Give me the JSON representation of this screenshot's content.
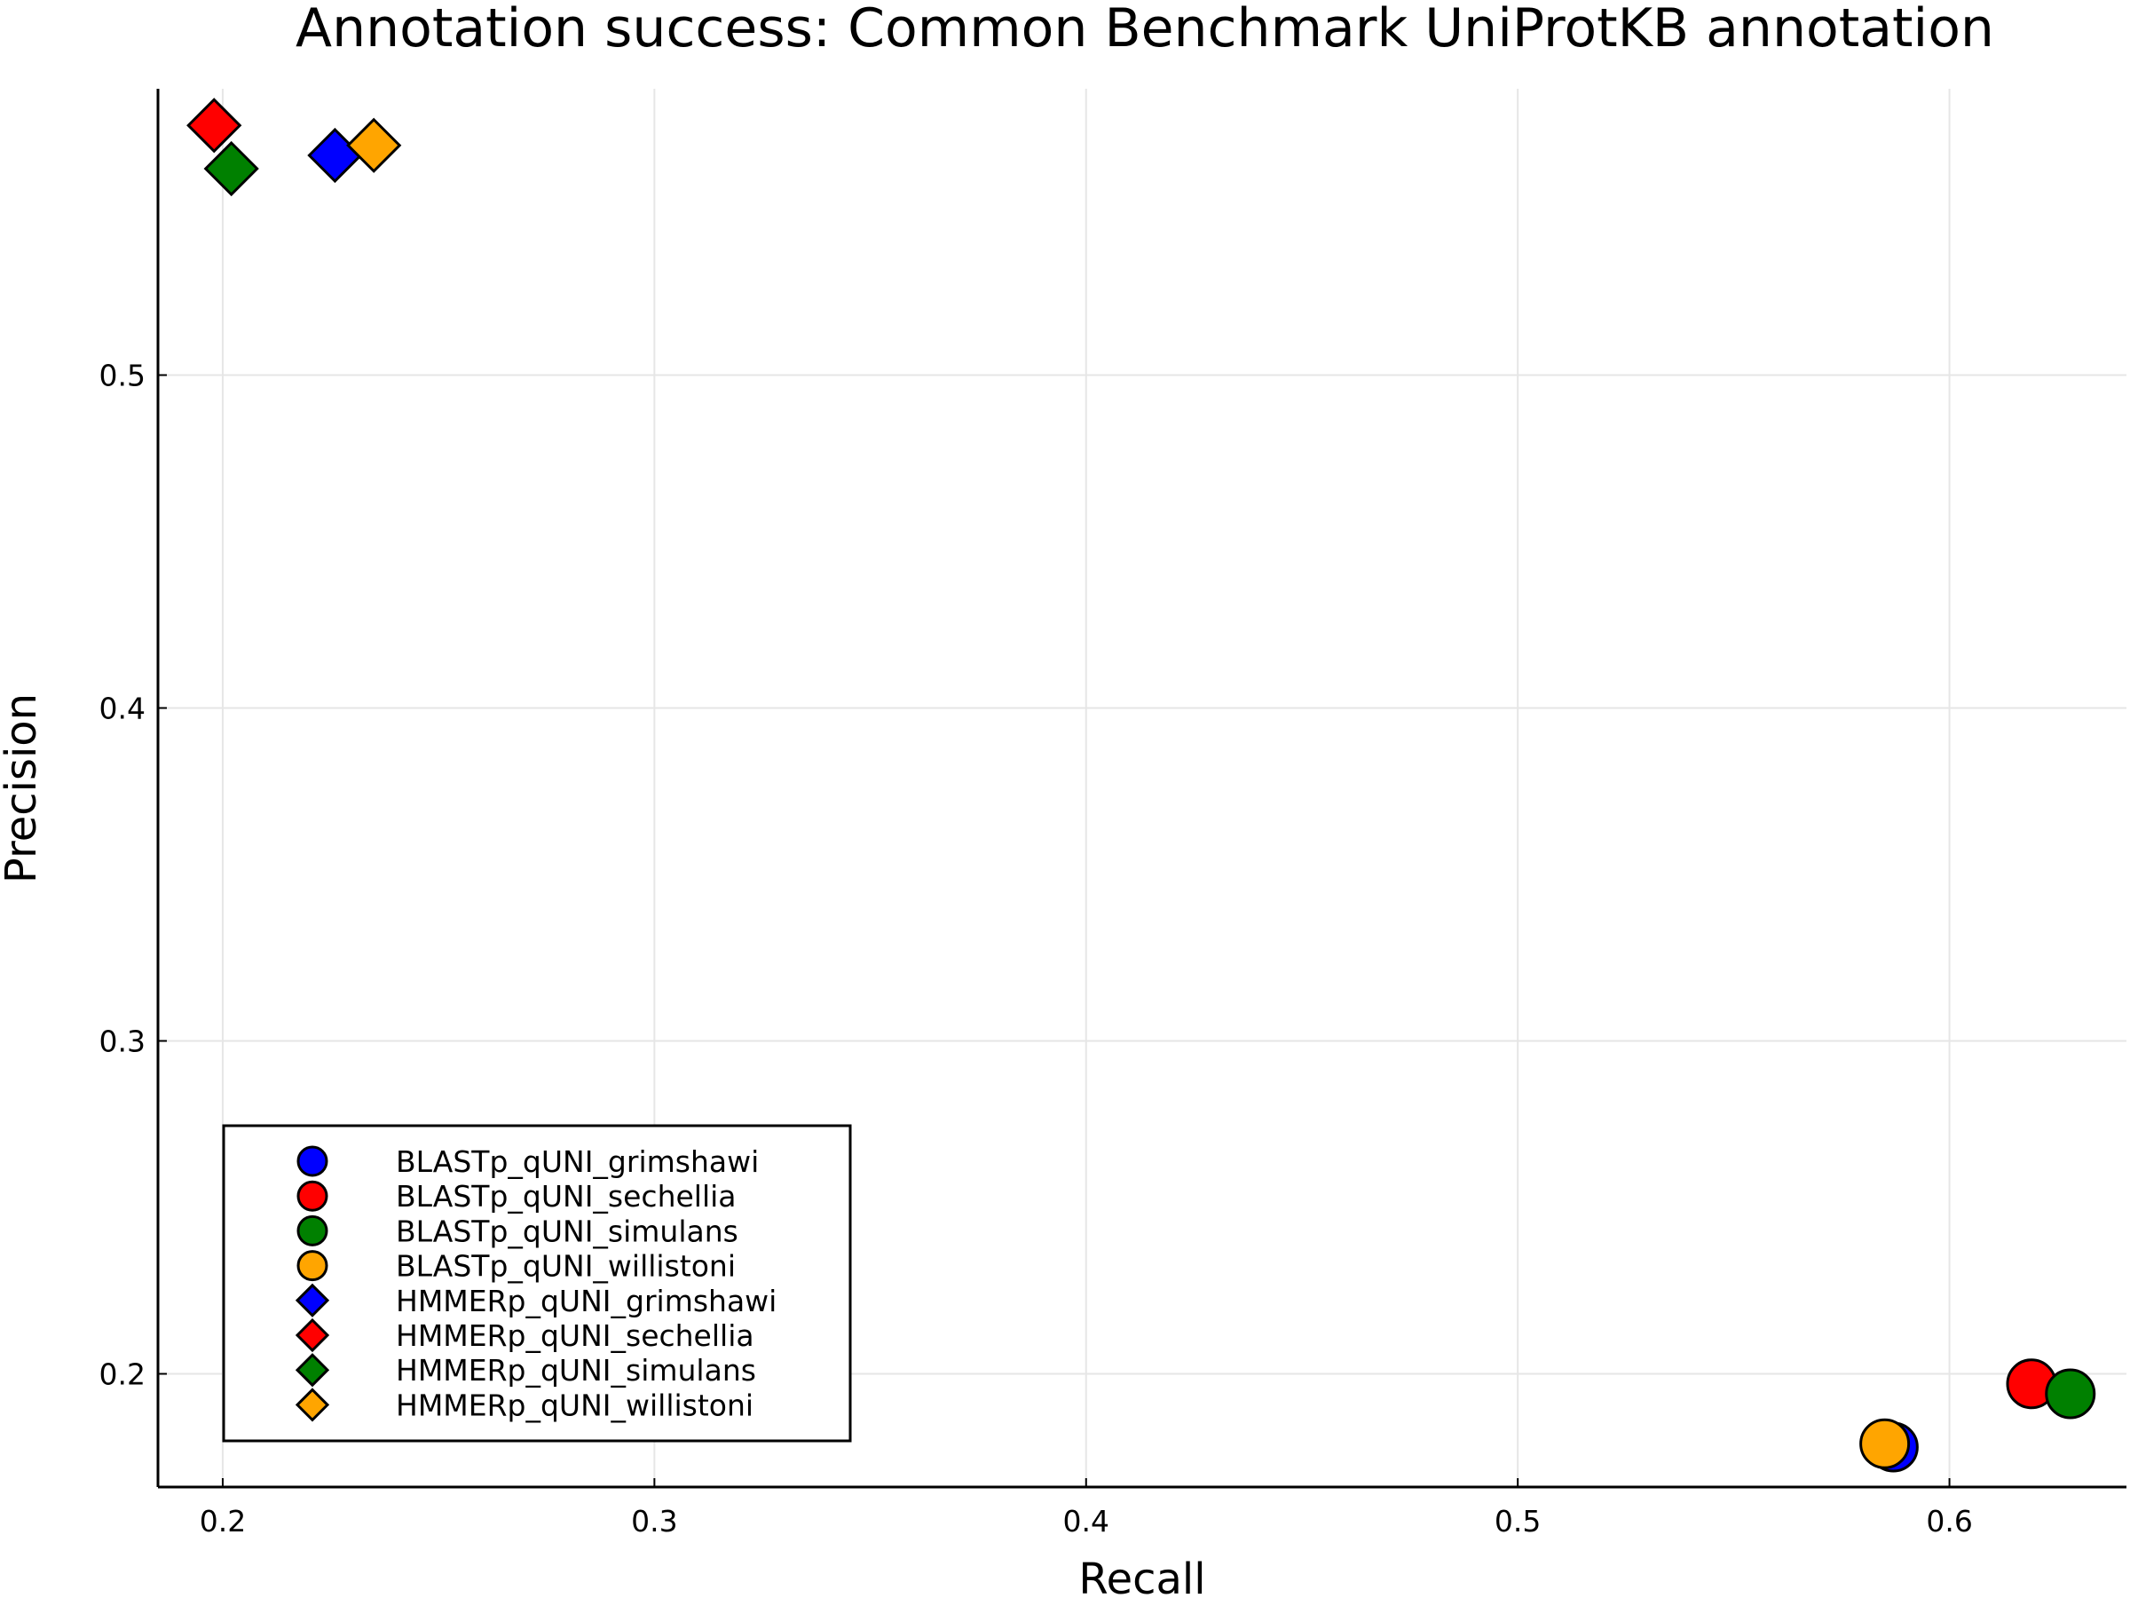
{
  "chart_data": {
    "type": "scatter",
    "title": "Annotation success: Common Benchmark UniProtKB annotation",
    "xlabel": "Recall",
    "ylabel": "Precision",
    "xlim": [
      0.185,
      0.641
    ],
    "ylim": [
      0.166,
      0.586
    ],
    "xticks": [
      0.2,
      0.3,
      0.4,
      0.5,
      0.6
    ],
    "xtick_labels": [
      "0.2",
      "0.3",
      "0.4",
      "0.5",
      "0.6"
    ],
    "yticks": [
      0.2,
      0.3,
      0.4,
      0.5
    ],
    "ytick_labels": [
      "0.2",
      "0.3",
      "0.4",
      "0.5"
    ],
    "grid": true,
    "legend_position": "bottom-left",
    "series": [
      {
        "name": "BLASTp_qUNI_grimshawi",
        "color": "#0000ff",
        "marker": "circle",
        "points": [
          {
            "x": 0.587,
            "y": 0.178
          }
        ]
      },
      {
        "name": "BLASTp_qUNI_sechellia",
        "color": "#ff0000",
        "marker": "circle",
        "points": [
          {
            "x": 0.619,
            "y": 0.197
          }
        ]
      },
      {
        "name": "BLASTp_qUNI_simulans",
        "color": "#008000",
        "marker": "circle",
        "points": [
          {
            "x": 0.628,
            "y": 0.194
          }
        ]
      },
      {
        "name": "BLASTp_qUNI_willistoni",
        "color": "#ffa500",
        "marker": "circle",
        "points": [
          {
            "x": 0.585,
            "y": 0.179
          }
        ]
      },
      {
        "name": "HMMERp_qUNI_grimshawi",
        "color": "#0000ff",
        "marker": "diamond",
        "points": [
          {
            "x": 0.226,
            "y": 0.566
          }
        ]
      },
      {
        "name": "HMMERp_qUNI_sechellia",
        "color": "#ff0000",
        "marker": "diamond",
        "points": [
          {
            "x": 0.198,
            "y": 0.575
          }
        ]
      },
      {
        "name": "HMMERp_qUNI_simulans",
        "color": "#008000",
        "marker": "diamond",
        "points": [
          {
            "x": 0.202,
            "y": 0.562
          }
        ]
      },
      {
        "name": "HMMERp_qUNI_willistoni",
        "color": "#ffa500",
        "marker": "diamond",
        "points": [
          {
            "x": 0.235,
            "y": 0.569
          }
        ]
      }
    ]
  }
}
